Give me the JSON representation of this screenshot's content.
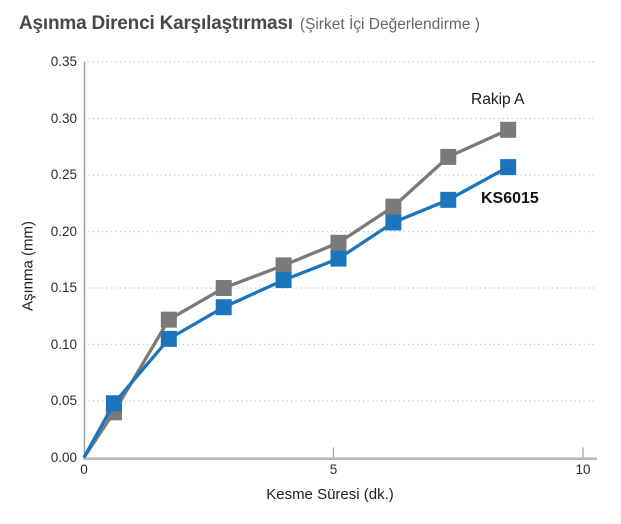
{
  "header": {
    "title": "Aşınma Direnci Karşılaştırması",
    "subtitle": "(Şirket İçi Değerlendirme )"
  },
  "chart_data": {
    "type": "line",
    "title": "Aşınma Direnci Karşılaştırması (Şirket İçi Değerlendirme )",
    "xlabel": "Kesme Süresi (dk.)",
    "ylabel": "Aşınma (mm)",
    "x": [
      0,
      0.6,
      1.7,
      2.8,
      4.0,
      5.1,
      6.2,
      7.3,
      8.5
    ],
    "series": [
      {
        "name": "Rakip A",
        "color": "#7a7a7a",
        "marker": "square",
        "values": [
          0,
          0.04,
          0.122,
          0.15,
          0.17,
          0.19,
          0.222,
          0.266,
          0.29
        ]
      },
      {
        "name": "KS6015",
        "color": "#1b75bc",
        "marker": "square",
        "values": [
          0,
          0.048,
          0.105,
          0.133,
          0.157,
          0.176,
          0.208,
          0.228,
          0.257
        ]
      }
    ],
    "xlim": [
      0,
      10.3
    ],
    "ylim": [
      0,
      0.35
    ],
    "x_ticks": [
      "0",
      "5",
      "10"
    ],
    "y_ticks": [
      "0.00",
      "0.05",
      "0.10",
      "0.15",
      "0.20",
      "0.25",
      "0.30",
      "0.35"
    ],
    "grid": "horizontal-dotted",
    "legend_position": "inline-labels-right"
  }
}
